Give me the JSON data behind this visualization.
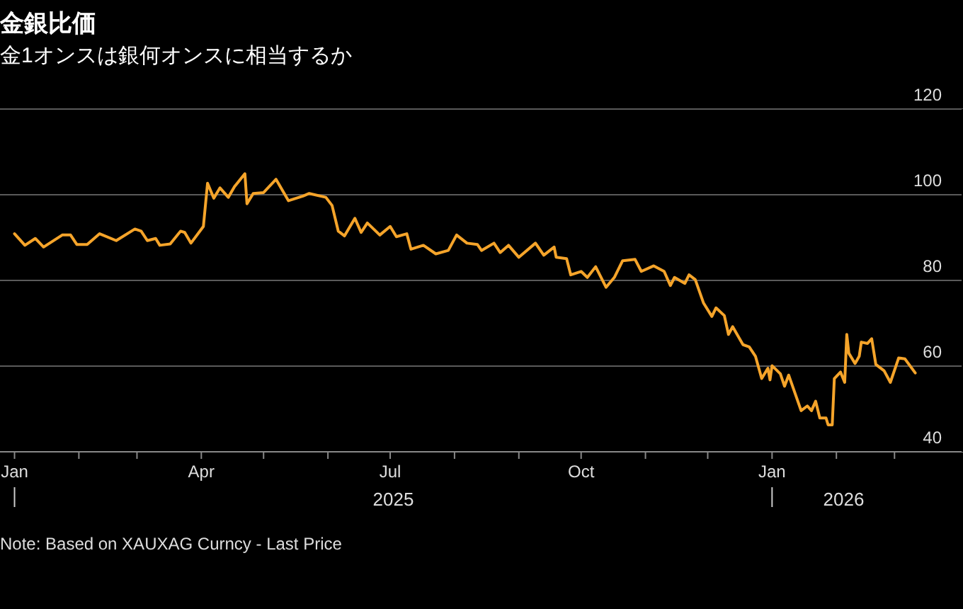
{
  "chart_data": {
    "type": "line",
    "title": "金銀比価",
    "subtitle": "金1オンスは銀何オンスに相当するか",
    "annotations": [
      "2025",
      "2026",
      "Note: Based on XAUXAG Curncy - Last Price"
    ],
    "x": [
      "2025-01-01",
      "2025-01-06",
      "2025-01-11",
      "2025-01-15",
      "2025-01-24",
      "2025-01-28",
      "2025-01-31",
      "2025-02-05",
      "2025-02-11",
      "2025-02-19",
      "2025-02-28",
      "2025-03-03",
      "2025-03-06",
      "2025-03-10",
      "2025-03-12",
      "2025-03-17",
      "2025-03-22",
      "2025-03-24",
      "2025-03-27",
      "2025-04-02",
      "2025-04-04",
      "2025-04-07",
      "2025-04-10",
      "2025-04-14",
      "2025-04-17",
      "2025-04-22",
      "2025-04-23",
      "2025-04-26",
      "2025-05-01",
      "2025-05-07",
      "2025-05-13",
      "2025-05-20",
      "2025-05-23",
      "2025-05-31",
      "2025-06-03",
      "2025-06-06",
      "2025-06-09",
      "2025-06-14",
      "2025-06-17",
      "2025-06-20",
      "2025-06-26",
      "2025-07-01",
      "2025-07-04",
      "2025-07-09",
      "2025-07-11",
      "2025-07-17",
      "2025-07-23",
      "2025-07-29",
      "2025-08-02",
      "2025-08-07",
      "2025-08-12",
      "2025-08-14",
      "2025-08-20",
      "2025-08-23",
      "2025-08-27",
      "2025-09-01",
      "2025-09-09",
      "2025-09-13",
      "2025-09-18",
      "2025-09-19",
      "2025-09-24",
      "2025-09-26",
      "2025-10-01",
      "2025-10-04",
      "2025-10-08",
      "2025-10-13",
      "2025-10-17",
      "2025-10-21",
      "2025-10-27",
      "2025-10-30",
      "2025-11-05",
      "2025-11-10",
      "2025-11-13",
      "2025-11-15",
      "2025-11-20",
      "2025-11-22",
      "2025-11-25",
      "2025-11-29",
      "2025-12-03",
      "2025-12-05",
      "2025-12-09",
      "2025-12-11",
      "2025-12-13",
      "2025-12-18",
      "2025-12-21",
      "2025-12-24",
      "2025-12-27",
      "2025-12-30",
      "2025-12-31",
      "2026-01-01",
      "2026-01-05",
      "2026-01-07",
      "2026-01-09",
      "2026-01-15",
      "2026-01-18",
      "2026-01-20",
      "2026-01-22",
      "2026-01-24",
      "2026-01-27",
      "2026-01-28",
      "2026-01-30",
      "2026-01-31",
      "2026-02-03",
      "2026-02-05",
      "2026-02-06",
      "2026-02-07",
      "2026-02-10",
      "2026-02-12",
      "2026-02-13",
      "2026-02-16",
      "2026-02-18",
      "2026-02-20",
      "2026-02-24",
      "2026-02-27",
      "2026-03-03",
      "2026-03-06",
      "2026-03-11"
    ],
    "series": [
      {
        "color": "#f5a42a",
        "values": [
          90.9,
          88.2,
          89.8,
          87.8,
          90.6,
          90.6,
          88.4,
          88.4,
          90.9,
          89.3,
          92.0,
          91.5,
          89.3,
          89.8,
          88.2,
          88.5,
          91.5,
          91.2,
          88.7,
          92.6,
          102.7,
          99.2,
          101.6,
          99.4,
          101.9,
          104.9,
          97.9,
          100.3,
          100.5,
          103.6,
          98.6,
          99.7,
          100.3,
          99.4,
          97.5,
          91.5,
          90.4,
          94.5,
          91.2,
          93.4,
          90.6,
          92.6,
          90.2,
          90.9,
          87.3,
          88.2,
          86.2,
          87.0,
          90.6,
          88.7,
          88.4,
          87.0,
          88.7,
          86.5,
          88.2,
          85.4,
          88.7,
          85.9,
          87.8,
          85.4,
          85.1,
          81.3,
          82.1,
          80.7,
          83.2,
          78.4,
          80.7,
          84.6,
          84.9,
          82.1,
          83.4,
          82.1,
          78.8,
          80.7,
          79.3,
          81.3,
          80.2,
          74.7,
          71.6,
          73.6,
          71.8,
          67.4,
          69.2,
          65.0,
          64.5,
          62.3,
          57.1,
          59.5,
          56.8,
          60.1,
          58.2,
          55.3,
          57.9,
          49.6,
          50.7,
          49.6,
          51.8,
          47.9,
          47.9,
          46.3,
          46.3,
          57.1,
          58.6,
          56.2,
          67.4,
          63.0,
          60.6,
          62.3,
          65.6,
          65.3,
          66.4,
          60.4,
          58.9,
          56.2,
          61.9,
          61.7,
          58.4
        ]
      }
    ],
    "xlim": [
      "2024-12-25",
      "2026-04-03"
    ],
    "xticks": [
      {
        "value": "2025-01-01",
        "label": "Jan"
      },
      {
        "value": "2025-02-01",
        "label": null
      },
      {
        "value": "2025-03-01",
        "label": null
      },
      {
        "value": "2025-04-01",
        "label": "Apr"
      },
      {
        "value": "2025-05-01",
        "label": null
      },
      {
        "value": "2025-06-01",
        "label": null
      },
      {
        "value": "2025-07-01",
        "label": "Jul"
      },
      {
        "value": "2025-08-01",
        "label": null
      },
      {
        "value": "2025-09-01",
        "label": null
      },
      {
        "value": "2025-10-01",
        "label": "Oct"
      },
      {
        "value": "2025-11-01",
        "label": null
      },
      {
        "value": "2025-12-01",
        "label": null
      },
      {
        "value": "2026-01-01",
        "label": "Jan"
      },
      {
        "value": "2026-02-01",
        "label": null
      },
      {
        "value": "2026-03-01",
        "label": null
      }
    ],
    "ylim": [
      40,
      120
    ],
    "yticks": [
      40,
      60,
      80,
      100,
      120
    ],
    "grid": "y",
    "legend": false,
    "marker": "none",
    "line_style": "solid"
  }
}
